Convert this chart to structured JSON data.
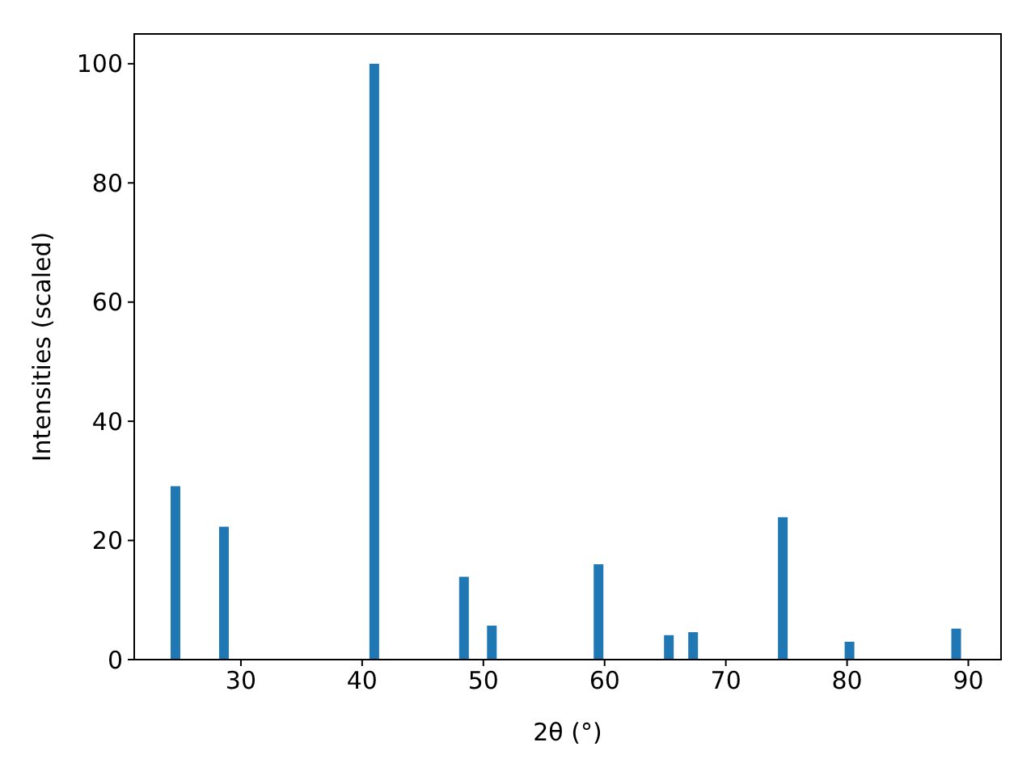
{
  "chart_data": {
    "type": "bar",
    "xlabel": "2θ (°)",
    "ylabel": "Intensities (scaled)",
    "color": "#1f77b4",
    "x": [
      24.6,
      28.6,
      41.0,
      48.4,
      50.7,
      59.5,
      65.3,
      67.3,
      74.7,
      80.2,
      89.0
    ],
    "values": [
      29.1,
      22.3,
      100,
      13.9,
      5.7,
      16.0,
      4.1,
      4.6,
      23.9,
      3.0,
      5.2
    ],
    "xlim": [
      21.2,
      92.7
    ],
    "ylim": [
      0,
      105
    ],
    "xticks": [
      30,
      40,
      50,
      60,
      70,
      80,
      90
    ],
    "yticks": [
      0,
      20,
      40,
      60,
      80,
      100
    ],
    "grid": false
  }
}
